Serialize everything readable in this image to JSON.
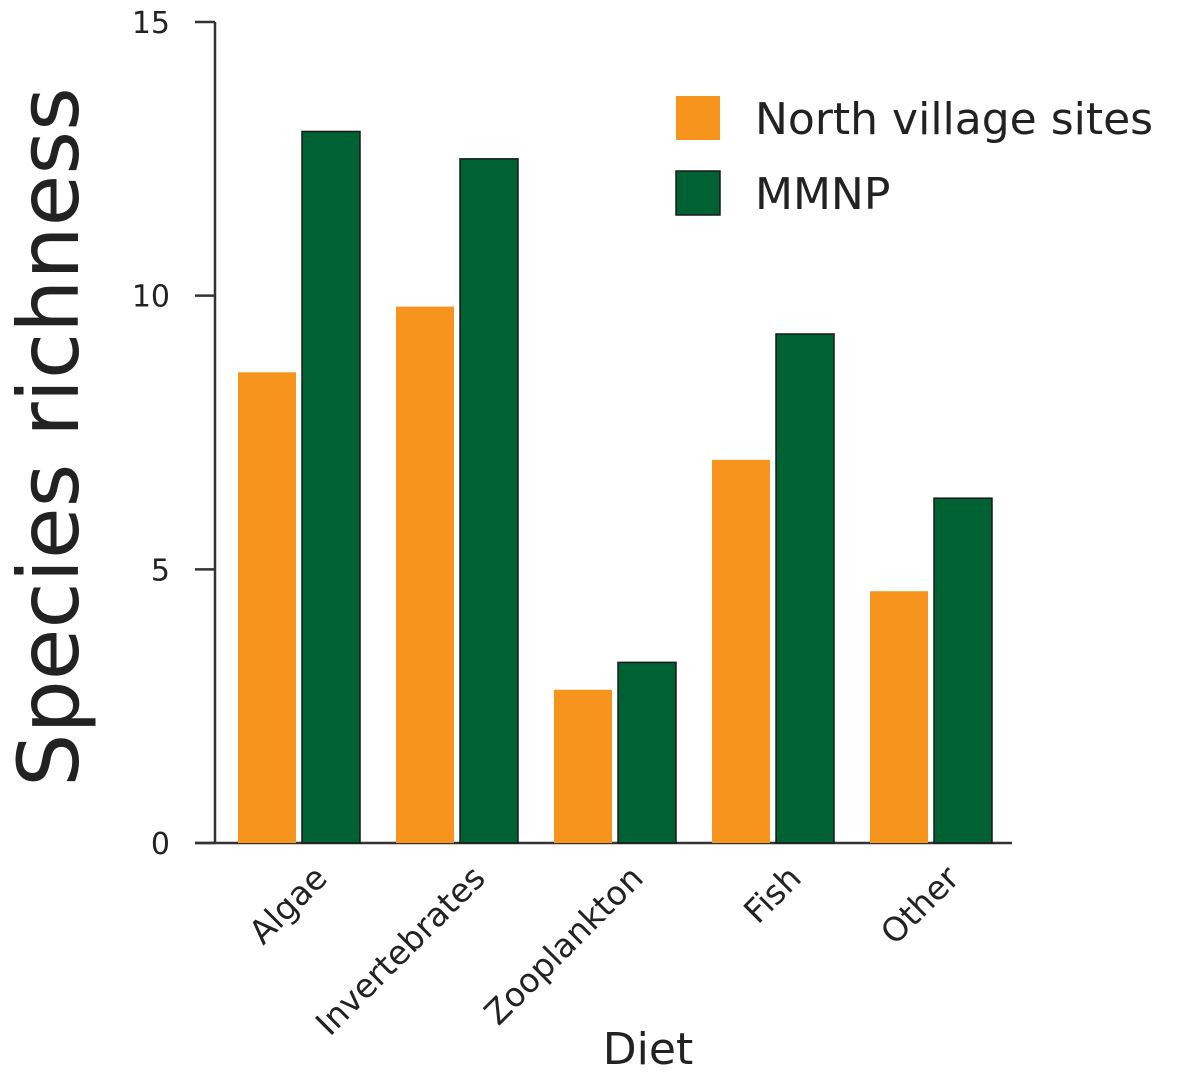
{
  "chart_data": {
    "type": "bar",
    "xlabel": "Diet",
    "ylabel": "Species richness",
    "ylim": [
      0,
      15
    ],
    "yticks": [
      "0",
      "5",
      "10",
      "15"
    ],
    "categories": [
      "Algae",
      "Invertebrates",
      "Zooplankton",
      "Fish",
      "Other"
    ],
    "series": [
      {
        "name": "North village sites",
        "color": "#f7941d",
        "values": [
          8.6,
          9.8,
          2.8,
          7.0,
          4.6
        ]
      },
      {
        "name": "MMNP",
        "color": "#006233",
        "values": [
          13.0,
          12.5,
          3.3,
          9.3,
          6.3
        ]
      }
    ],
    "legend": {
      "position": "top-right"
    },
    "grid": false
  }
}
